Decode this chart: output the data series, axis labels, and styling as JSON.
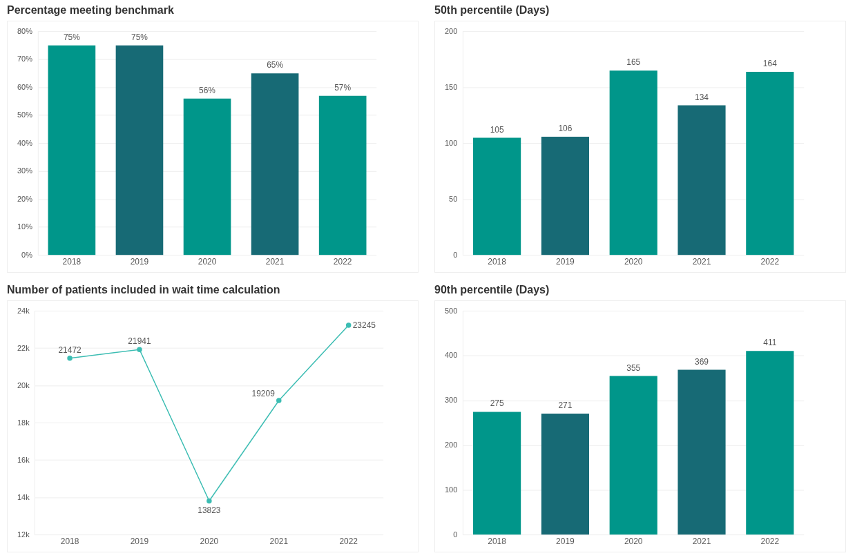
{
  "chart_data": [
    {
      "type": "bar",
      "title": "Percentage meeting benchmark",
      "categories": [
        "2018",
        "2019",
        "2020",
        "2021",
        "2022"
      ],
      "values": [
        75,
        75,
        56,
        65,
        57
      ],
      "colors": [
        "#00968a",
        "#176a75",
        "#00968a",
        "#176a75",
        "#00968a"
      ],
      "value_labels": [
        "75%",
        "75%",
        "56%",
        "65%",
        "57%"
      ],
      "ylim": [
        0,
        80
      ],
      "yticks": [
        {
          "value": 0,
          "label": "0%"
        },
        {
          "value": 10,
          "label": "10%"
        },
        {
          "value": 20,
          "label": "20%"
        },
        {
          "value": 30,
          "label": "30%"
        },
        {
          "value": 40,
          "label": "40%"
        },
        {
          "value": 50,
          "label": "50%"
        },
        {
          "value": 60,
          "label": "60%"
        },
        {
          "value": 70,
          "label": "70%"
        },
        {
          "value": 80,
          "label": "80%"
        }
      ],
      "grid": "y",
      "legend": false
    },
    {
      "type": "bar",
      "title": "50th percentile (Days)",
      "categories": [
        "2018",
        "2019",
        "2020",
        "2021",
        "2022"
      ],
      "values": [
        105,
        106,
        165,
        134,
        164
      ],
      "colors": [
        "#00968a",
        "#176a75",
        "#00968a",
        "#176a75",
        "#00968a"
      ],
      "data_labels": true,
      "ylim": [
        0,
        200
      ],
      "yticks": [
        0,
        50,
        100,
        150,
        200
      ],
      "grid": "y",
      "legend": false
    },
    {
      "type": "line",
      "title": "Number of patients included in wait time calculation",
      "categories": [
        "2018",
        "2019",
        "2020",
        "2021",
        "2022"
      ],
      "series": [
        {
          "color": "#3cbdb3",
          "values": [
            21472,
            21941,
            13823,
            19209,
            23245
          ]
        }
      ],
      "data_labels": true,
      "marker": "circle",
      "ylim": [
        12000,
        24000
      ],
      "yticks": [
        {
          "value": 12000,
          "label": "12k"
        },
        {
          "value": 14000,
          "label": "14k"
        },
        {
          "value": 16000,
          "label": "16k"
        },
        {
          "value": 18000,
          "label": "18k"
        },
        {
          "value": 20000,
          "label": "20k"
        },
        {
          "value": 22000,
          "label": "22k"
        },
        {
          "value": 24000,
          "label": "24k"
        }
      ],
      "grid": "y",
      "legend": false
    },
    {
      "type": "bar",
      "title": "90th percentile (Days)",
      "categories": [
        "2018",
        "2019",
        "2020",
        "2021",
        "2022"
      ],
      "values": [
        275,
        271,
        355,
        369,
        411
      ],
      "colors": [
        "#00968a",
        "#176a75",
        "#00968a",
        "#176a75",
        "#00968a"
      ],
      "data_labels": true,
      "ylim": [
        0,
        500
      ],
      "yticks": [
        0,
        100,
        200,
        300,
        400,
        500
      ],
      "grid": "y",
      "legend": false
    }
  ]
}
